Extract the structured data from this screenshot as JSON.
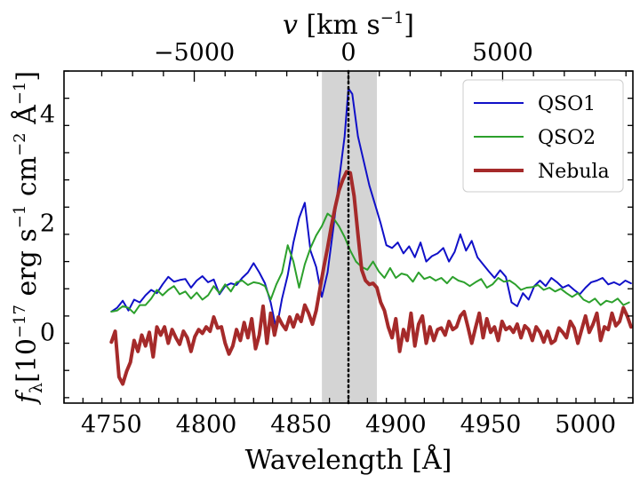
{
  "chart_data": {
    "type": "line",
    "xlabel": "Wavelength [Å]",
    "ylabel": "f_λ [10^-17 erg s^-1 cm^-2 Å^-1]",
    "ylabel_parts": {
      "f": "f",
      "sub": "λ",
      "unit_pre": "[10",
      "exp1": "−17",
      "erg": " erg s",
      "exp2": "−1",
      "cm": " cm",
      "exp3": "−2",
      "ang": " Å",
      "exp4": "−1",
      "close": "]"
    },
    "top_xlabel": "v [km s^-1]",
    "top_xlabel_parts": {
      "v": "v",
      "unit": " [km s",
      "exp": "−1",
      "close": "]"
    },
    "xlim": [
      4725,
      5025
    ],
    "ylim": [
      -1.3,
      4.8
    ],
    "xticks": [
      4750,
      4800,
      4850,
      4900,
      4950,
      5000
    ],
    "xtick_labels": [
      "4750",
      "4800",
      "4850",
      "4900",
      "4950",
      "5000"
    ],
    "yticks": [
      0,
      2,
      4
    ],
    "ytick_labels": [
      "0",
      "2",
      "4"
    ],
    "top_xticks": [
      -5000,
      0,
      5000
    ],
    "top_xtick_labels": [
      "−5000",
      "0",
      "5000"
    ],
    "line_center_wavelength": 4875,
    "shaded_band": [
      4861,
      4890
    ],
    "legend_position": "top-right",
    "series": [
      {
        "name": "QSO1",
        "color": "#1010c8",
        "line_width": 2,
        "x": [
          4750,
          4753,
          4756,
          4759,
          4762,
          4765,
          4768,
          4771,
          4774,
          4777,
          4780,
          4783,
          4786,
          4789,
          4792,
          4795,
          4798,
          4801,
          4804,
          4807,
          4810,
          4813,
          4816,
          4819,
          4822,
          4825,
          4828,
          4831,
          4834,
          4837,
          4840,
          4843,
          4846,
          4849,
          4852,
          4855,
          4858,
          4861,
          4864,
          4867,
          4870,
          4873,
          4875,
          4877,
          4880,
          4883,
          4886,
          4889,
          4892,
          4895,
          4898,
          4901,
          4904,
          4907,
          4910,
          4913,
          4916,
          4919,
          4922,
          4925,
          4928,
          4931,
          4934,
          4937,
          4940,
          4943,
          4946,
          4949,
          4952,
          4955,
          4958,
          4961,
          4964,
          4967,
          4970,
          4973,
          4976,
          4979,
          4982,
          4985,
          4988,
          4991,
          4994,
          4997,
          5000,
          5003,
          5006,
          5009,
          5012,
          5015,
          5018,
          5021,
          5024
        ],
        "y": [
          0.38,
          0.45,
          0.58,
          0.4,
          0.6,
          0.55,
          0.68,
          0.78,
          0.72,
          0.88,
          1.02,
          0.93,
          0.96,
          0.98,
          0.82,
          0.95,
          1.03,
          0.92,
          0.97,
          0.7,
          0.85,
          0.9,
          0.87,
          1.0,
          1.1,
          1.27,
          1.1,
          0.9,
          0.55,
          0.05,
          0.62,
          1.05,
          1.65,
          2.1,
          2.38,
          1.5,
          1.2,
          0.65,
          1.1,
          1.9,
          2.78,
          3.6,
          4.48,
          4.38,
          3.6,
          3.15,
          2.7,
          2.35,
          2.0,
          1.6,
          1.55,
          1.65,
          1.45,
          1.58,
          1.38,
          1.65,
          1.3,
          1.4,
          1.45,
          1.55,
          1.3,
          1.48,
          1.8,
          1.5,
          1.68,
          1.38,
          1.25,
          1.12,
          1.0,
          1.14,
          1.02,
          0.55,
          0.48,
          0.72,
          0.6,
          0.85,
          0.95,
          0.85,
          1.0,
          0.92,
          0.82,
          0.87,
          0.78,
          0.7,
          0.82,
          0.92,
          0.95,
          1.0,
          0.88,
          0.92,
          0.87,
          0.95,
          0.9
        ]
      },
      {
        "name": "QSO2",
        "color": "#2ca02c",
        "line_width": 2,
        "x": [
          4750,
          4753,
          4756,
          4759,
          4762,
          4765,
          4768,
          4771,
          4774,
          4777,
          4780,
          4783,
          4786,
          4789,
          4792,
          4795,
          4798,
          4801,
          4804,
          4807,
          4810,
          4813,
          4816,
          4819,
          4822,
          4825,
          4828,
          4831,
          4834,
          4837,
          4840,
          4843,
          4846,
          4849,
          4852,
          4855,
          4858,
          4861,
          4864,
          4867,
          4870,
          4873,
          4876,
          4879,
          4882,
          4885,
          4888,
          4891,
          4894,
          4897,
          4900,
          4903,
          4906,
          4909,
          4912,
          4915,
          4918,
          4921,
          4924,
          4927,
          4930,
          4933,
          4936,
          4939,
          4942,
          4945,
          4948,
          4951,
          4954,
          4957,
          4960,
          4963,
          4966,
          4969,
          4972,
          4975,
          4978,
          4981,
          4984,
          4987,
          4990,
          4993,
          4996,
          4999,
          5002,
          5005,
          5008,
          5011,
          5014,
          5017,
          5020,
          5023
        ],
        "y": [
          0.38,
          0.4,
          0.48,
          0.45,
          0.35,
          0.5,
          0.5,
          0.62,
          0.78,
          0.68,
          0.78,
          0.85,
          0.7,
          0.75,
          0.62,
          0.73,
          0.6,
          0.68,
          0.85,
          0.72,
          0.88,
          0.75,
          0.92,
          0.95,
          0.87,
          0.92,
          0.9,
          0.85,
          0.6,
          0.88,
          1.1,
          1.6,
          1.3,
          0.82,
          1.25,
          1.55,
          1.78,
          1.95,
          2.18,
          2.1,
          1.95,
          1.75,
          1.5,
          1.3,
          1.2,
          1.15,
          1.3,
          1.12,
          1.0,
          1.18,
          1.0,
          1.08,
          1.05,
          0.93,
          1.1,
          0.98,
          1.02,
          0.95,
          1.0,
          0.9,
          1.02,
          0.95,
          0.92,
          0.85,
          0.92,
          0.98,
          0.82,
          0.88,
          1.0,
          0.93,
          0.95,
          0.88,
          0.78,
          0.82,
          0.83,
          0.87,
          0.78,
          0.82,
          0.75,
          0.8,
          0.72,
          0.65,
          0.72,
          0.6,
          0.55,
          0.62,
          0.5,
          0.58,
          0.55,
          0.62,
          0.5,
          0.55
        ]
      },
      {
        "name": "Nebula",
        "color": "#a52a2a",
        "line_width": 4,
        "x": [
          4750,
          4752,
          4754,
          4756,
          4758,
          4760,
          4762,
          4764,
          4766,
          4768,
          4770,
          4772,
          4774,
          4776,
          4778,
          4780,
          4782,
          4784,
          4786,
          4788,
          4790,
          4792,
          4794,
          4796,
          4798,
          4800,
          4802,
          4804,
          4806,
          4808,
          4810,
          4812,
          4814,
          4816,
          4818,
          4820,
          4822,
          4824,
          4826,
          4828,
          4830,
          4832,
          4834,
          4836,
          4838,
          4840,
          4842,
          4844,
          4846,
          4848,
          4850,
          4852,
          4854,
          4856,
          4858,
          4860,
          4862,
          4864,
          4866,
          4868,
          4870,
          4872,
          4874,
          4876,
          4878,
          4880,
          4882,
          4884,
          4886,
          4888,
          4890,
          4892,
          4894,
          4896,
          4898,
          4900,
          4902,
          4904,
          4906,
          4908,
          4910,
          4912,
          4914,
          4916,
          4918,
          4920,
          4922,
          4924,
          4926,
          4928,
          4930,
          4932,
          4934,
          4936,
          4938,
          4940,
          4942,
          4944,
          4946,
          4948,
          4950,
          4952,
          4954,
          4956,
          4958,
          4960,
          4962,
          4964,
          4966,
          4968,
          4970,
          4972,
          4974,
          4976,
          4978,
          4980,
          4982,
          4984,
          4986,
          4988,
          4990,
          4992,
          4994,
          4996,
          4998,
          5000,
          5002,
          5004,
          5006,
          5008,
          5010,
          5012,
          5014,
          5016,
          5018,
          5020,
          5022,
          5024
        ],
        "y": [
          -0.18,
          0.02,
          -0.82,
          -0.95,
          -0.72,
          -0.55,
          -0.15,
          -0.35,
          -0.05,
          -0.25,
          0.0,
          -0.45,
          0.1,
          -0.05,
          0.1,
          -0.2,
          0.05,
          -0.1,
          -0.22,
          0.02,
          -0.1,
          -0.35,
          -0.08,
          0.05,
          -0.02,
          0.1,
          0.02,
          0.28,
          0.08,
          0.1,
          -0.2,
          -0.4,
          -0.25,
          0.05,
          -0.15,
          0.18,
          -0.1,
          0.25,
          -0.3,
          -0.05,
          0.48,
          -0.2,
          0.35,
          -0.05,
          0.28,
          0.15,
          0.05,
          0.28,
          0.1,
          0.32,
          0.2,
          0.5,
          0.35,
          0.15,
          0.4,
          0.8,
          1.2,
          1.55,
          1.95,
          2.3,
          2.6,
          2.8,
          2.95,
          2.93,
          2.5,
          1.8,
          1.15,
          0.95,
          0.88,
          0.9,
          0.82,
          0.55,
          0.4,
          0.1,
          -0.1,
          0.25,
          -0.35,
          0.05,
          -0.15,
          0.35,
          -0.25,
          0.15,
          0.3,
          -0.2,
          0.1,
          -0.15,
          0.05,
          0.08,
          -0.05,
          0.2,
          0.05,
          0.1,
          0.3,
          0.38,
          0.1,
          -0.2,
          0.08,
          0.35,
          -0.1,
          0.25,
          0.0,
          0.1,
          -0.15,
          0.2,
          0.05,
          0.1,
          0.0,
          0.15,
          -0.1,
          0.12,
          0.05,
          -0.15,
          0.1,
          0.0,
          -0.18,
          0.02,
          -0.2,
          -0.15,
          0.08,
          0.0,
          -0.1,
          0.2,
          0.08,
          -0.2,
          0.05,
          0.3,
          0.0,
          0.15,
          0.35,
          -0.15,
          0.1,
          0.05,
          0.35,
          0.12,
          0.2,
          0.45,
          0.3,
          0.1
        ]
      }
    ]
  }
}
